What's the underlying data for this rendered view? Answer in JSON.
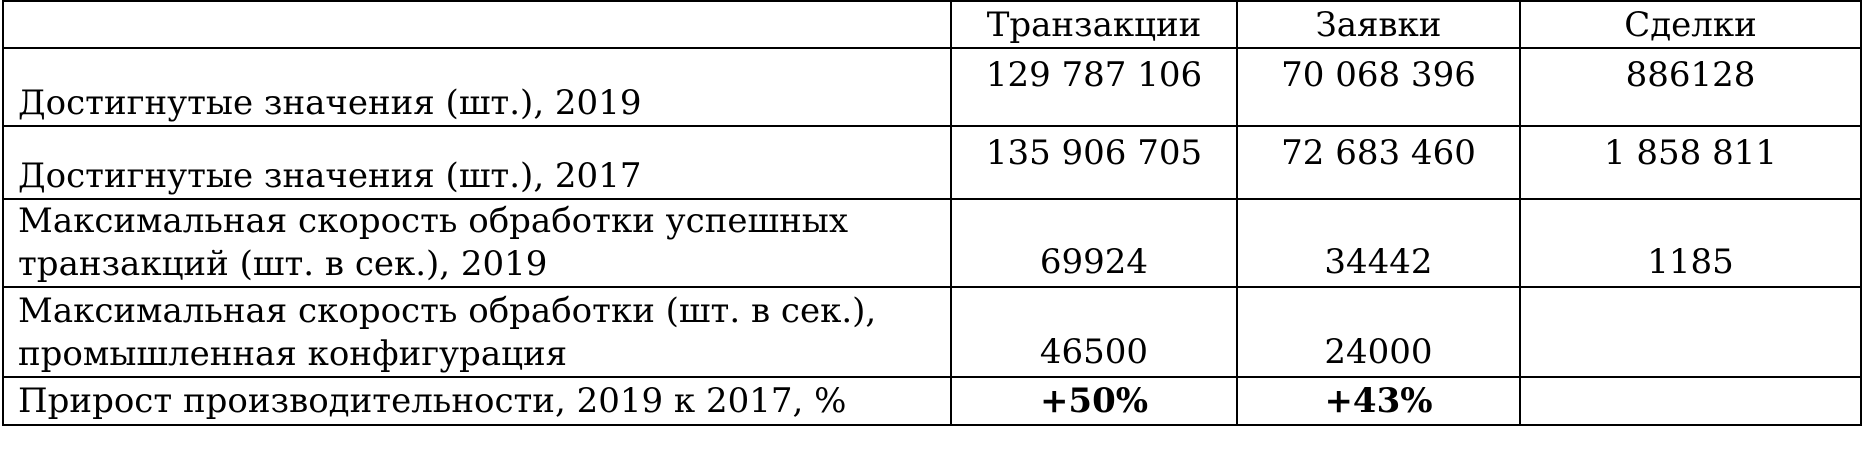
{
  "table": {
    "headers": [
      "",
      "Транзакции",
      "Заявки",
      "Сделки"
    ],
    "rows": [
      {
        "label": "Достигнутые значения (шт.), 2019",
        "transactions": "129 787 106",
        "orders": "70 068 396",
        "deals": "886128"
      },
      {
        "label": "Достигнутые значения (шт.), 2017",
        "transactions": "135 906 705",
        "orders": "72 683 460",
        "deals": "1 858 811"
      },
      {
        "label": "Максимальная скорость обработки успешных транзакций (шт. в сек.), 2019",
        "transactions": "69924",
        "orders": "34442",
        "deals": "1185"
      },
      {
        "label": "Максимальная скорость обработки (шт. в сек.), промышленная конфигурация",
        "transactions": "46500",
        "orders": "24000",
        "deals": ""
      },
      {
        "label": "Прирост производительности, 2019 к 2017, %",
        "transactions": "+50%",
        "orders": "+43%",
        "deals": ""
      }
    ]
  }
}
